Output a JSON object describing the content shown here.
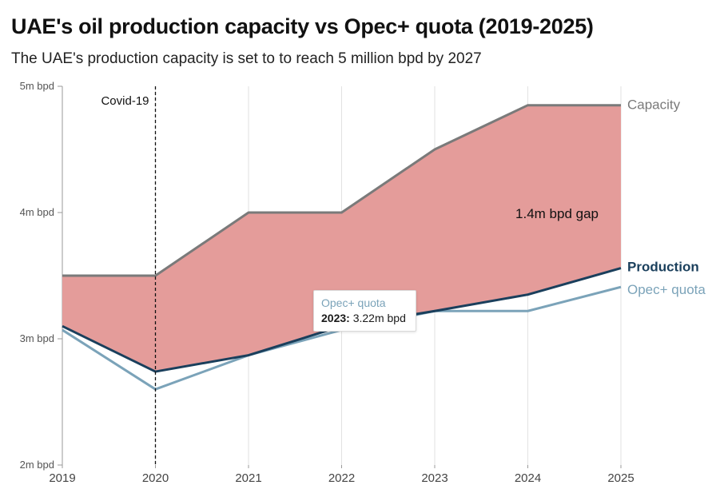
{
  "title": "UAE's oil production capacity vs Opec+ quota (2019-2025)",
  "subtitle": "The UAE's production capacity is set to to reach 5 million bpd by 2027",
  "colors": {
    "gap_fill": "#e49c9a",
    "capacity": "#7a7a7a",
    "production": "#1a3f5c",
    "quota": "#7ba3b9",
    "grid": "#e2e2e2",
    "axis": "#999999"
  },
  "chart_data": {
    "type": "area",
    "title": "UAE's oil production capacity vs Opec+ quota (2019-2025)",
    "x": [
      "2019",
      "2020",
      "2021",
      "2022",
      "2023",
      "2024",
      "2025"
    ],
    "xlabel": "",
    "ylabel": "",
    "ylim": [
      2,
      5
    ],
    "yticks": [
      2,
      3,
      4,
      5
    ],
    "ytick_labels": [
      "2m bpd",
      "3m bpd",
      "4m bpd",
      "5m bpd"
    ],
    "series": [
      {
        "name": "Capacity",
        "values": [
          3.5,
          3.5,
          4.0,
          4.0,
          4.5,
          4.85,
          4.85
        ]
      },
      {
        "name": "Production",
        "values": [
          3.1,
          2.74,
          2.87,
          3.1,
          3.22,
          3.35,
          3.56
        ]
      },
      {
        "name": "Opec+ quota",
        "values": [
          3.07,
          2.6,
          2.87,
          3.07,
          3.22,
          3.22,
          3.41
        ]
      }
    ],
    "shaded_area": {
      "between": [
        "Capacity",
        "Production"
      ]
    },
    "annotations": [
      {
        "type": "vline",
        "x": "2020",
        "label": "Covid-19"
      },
      {
        "type": "text",
        "label": "1.4m bpd gap"
      }
    ],
    "tooltip": {
      "series": "Opec+ quota",
      "year": "2023",
      "value": "3.22m bpd"
    }
  }
}
